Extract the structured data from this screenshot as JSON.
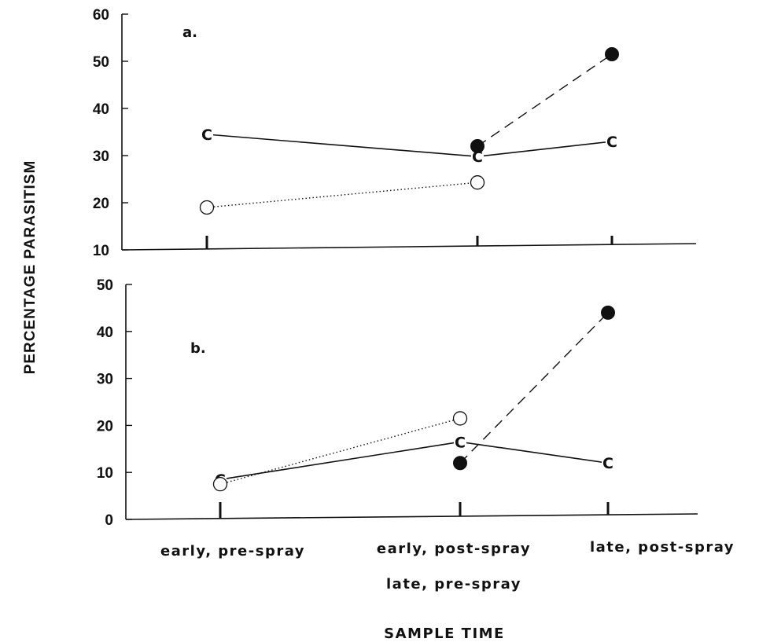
{
  "figure": {
    "ylabel": "PERCENTAGE PARASITISM",
    "xlabel": "SAMPLE TIME",
    "categories": [
      "early, pre-spray",
      "early, post-spray",
      "late, post-spray"
    ],
    "category_sublabel": "late, pre-spray"
  },
  "chart_data": [
    {
      "type": "line",
      "panel_label": "a.",
      "categories": [
        "early, pre-spray",
        "early, post-spray / late, pre-spray",
        "late, post-spray"
      ],
      "ylim": [
        10,
        60
      ],
      "yticks": [
        10,
        20,
        30,
        40,
        50,
        60
      ],
      "series": [
        {
          "marker": "C",
          "line": "solid",
          "values": [
            34.5,
            29.8,
            33
          ]
        },
        {
          "marker": "open-circle",
          "line": "dotted",
          "values": [
            19,
            24.3,
            null
          ]
        },
        {
          "marker": "filled-circle",
          "line": "dashed",
          "values": [
            null,
            32,
            51.5
          ]
        }
      ]
    },
    {
      "type": "line",
      "panel_label": "b.",
      "categories": [
        "early, pre-spray",
        "early, post-spray / late, pre-spray",
        "late, post-spray"
      ],
      "ylim": [
        0,
        50
      ],
      "yticks": [
        0,
        10,
        20,
        30,
        40,
        50
      ],
      "series": [
        {
          "marker": "C",
          "line": "solid",
          "values": [
            8.5,
            16.5,
            12
          ]
        },
        {
          "marker": "open-circle",
          "line": "dotted",
          "values": [
            7.5,
            21.5,
            null
          ]
        },
        {
          "marker": "filled-circle",
          "line": "dashed",
          "values": [
            null,
            12,
            44
          ]
        }
      ]
    }
  ]
}
